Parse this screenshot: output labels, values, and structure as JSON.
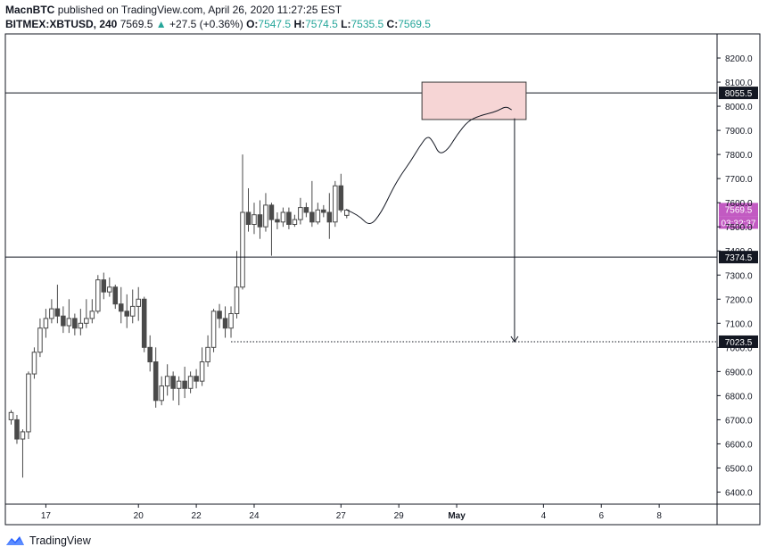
{
  "header": {
    "author": "MacnBTC",
    "published": "published on TradingView.com, April 26, 2020 11:27:25 EST",
    "symbol": "BITMEX:XBTUSD, 240",
    "last": "7569.5",
    "change": "+27.5 (+0.36%)",
    "o_label": "O:",
    "o_value": "7547.5",
    "h_label": "H:",
    "h_value": "7574.5",
    "l_label": "L:",
    "l_value": "7535.5",
    "c_label": "C:",
    "c_value": "7569.5"
  },
  "brand": {
    "name": "TradingView",
    "icon": "tradingview-logo-icon"
  },
  "colors": {
    "up": "#ffffff",
    "down": "#4a4a4a",
    "wick": "#4a4a4a",
    "zone_fill": "#f6d5d5",
    "zone_stroke": "#3a3a3a",
    "level_line": "#131722",
    "price_badge": "#c25ac2",
    "label_bg": "#131722"
  },
  "chart_data": {
    "type": "candlestick",
    "title": "",
    "xlabel": "",
    "ylabel": "",
    "ylim": [
      6350,
      8300
    ],
    "grid": false,
    "y_ticks": [
      "6400.0",
      "6500.0",
      "6600.0",
      "6700.0",
      "6800.0",
      "6900.0",
      "7000.0",
      "7100.0",
      "7200.0",
      "7300.0",
      "7400.0",
      "7500.0",
      "7600.0",
      "7700.0",
      "7800.0",
      "7900.0",
      "8000.0",
      "8100.0",
      "8200.0"
    ],
    "x_ticks": [
      {
        "label": "17",
        "bar": 6
      },
      {
        "label": "20",
        "bar": 22
      },
      {
        "label": "22",
        "bar": 32
      },
      {
        "label": "24",
        "bar": 42
      },
      {
        "label": "27",
        "bar": 57
      },
      {
        "label": "29",
        "bar": 67
      },
      {
        "label": "May",
        "bar": 77
      },
      {
        "label": "4",
        "bar": 92
      },
      {
        "label": "6",
        "bar": 102
      },
      {
        "label": "8",
        "bar": 112
      }
    ],
    "x_range": [
      -1,
      122
    ],
    "candles": [
      [
        6700,
        6730,
        6680,
        6740
      ],
      [
        6700,
        6620,
        6600,
        6720
      ],
      [
        6620,
        6650,
        6460,
        6660
      ],
      [
        6650,
        6890,
        6620,
        6900
      ],
      [
        6890,
        6980,
        6870,
        7000
      ],
      [
        6980,
        7080,
        6960,
        7120
      ],
      [
        7080,
        7120,
        7040,
        7160
      ],
      [
        7120,
        7160,
        7100,
        7200
      ],
      [
        7160,
        7130,
        7100,
        7260
      ],
      [
        7130,
        7090,
        7060,
        7170
      ],
      [
        7090,
        7120,
        7060,
        7200
      ],
      [
        7120,
        7080,
        7050,
        7140
      ],
      [
        7080,
        7100,
        7050,
        7160
      ],
      [
        7100,
        7120,
        7080,
        7200
      ],
      [
        7120,
        7150,
        7100,
        7200
      ],
      [
        7150,
        7280,
        7140,
        7300
      ],
      [
        7280,
        7230,
        7200,
        7310
      ],
      [
        7230,
        7250,
        7210,
        7290
      ],
      [
        7250,
        7180,
        7160,
        7260
      ],
      [
        7180,
        7150,
        7100,
        7250
      ],
      [
        7150,
        7130,
        7080,
        7220
      ],
      [
        7130,
        7170,
        7100,
        7240
      ],
      [
        7170,
        7200,
        7110,
        7250
      ],
      [
        7200,
        7000,
        6980,
        7210
      ],
      [
        7000,
        6940,
        6900,
        7050
      ],
      [
        6940,
        6780,
        6750,
        7000
      ],
      [
        6780,
        6840,
        6760,
        6880
      ],
      [
        6840,
        6880,
        6800,
        6930
      ],
      [
        6880,
        6830,
        6780,
        6900
      ],
      [
        6830,
        6860,
        6760,
        6880
      ],
      [
        6860,
        6830,
        6790,
        6920
      ],
      [
        6830,
        6880,
        6810,
        6900
      ],
      [
        6880,
        6860,
        6830,
        6910
      ],
      [
        6860,
        6940,
        6840,
        7000
      ],
      [
        6940,
        7000,
        6920,
        7050
      ],
      [
        7000,
        7150,
        6980,
        7160
      ],
      [
        7150,
        7120,
        7080,
        7180
      ],
      [
        7120,
        7080,
        7040,
        7170
      ],
      [
        7080,
        7140,
        7040,
        7170
      ],
      [
        7140,
        7250,
        7120,
        7400
      ],
      [
        7250,
        7560,
        7240,
        7800
      ],
      [
        7560,
        7510,
        7480,
        7660
      ],
      [
        7510,
        7550,
        7470,
        7600
      ],
      [
        7550,
        7500,
        7450,
        7610
      ],
      [
        7500,
        7590,
        7480,
        7640
      ],
      [
        7590,
        7530,
        7380,
        7600
      ],
      [
        7530,
        7520,
        7490,
        7560
      ],
      [
        7520,
        7560,
        7500,
        7580
      ],
      [
        7560,
        7510,
        7490,
        7580
      ],
      [
        7510,
        7530,
        7500,
        7550
      ],
      [
        7530,
        7580,
        7510,
        7620
      ],
      [
        7580,
        7560,
        7540,
        7600
      ],
      [
        7560,
        7520,
        7500,
        7690
      ],
      [
        7520,
        7570,
        7510,
        7600
      ],
      [
        7570,
        7560,
        7540,
        7590
      ],
      [
        7560,
        7520,
        7450,
        7640
      ],
      [
        7520,
        7670,
        7500,
        7690
      ],
      [
        7670,
        7570,
        7560,
        7720
      ],
      [
        7547.5,
        7569.5,
        7535.5,
        7574.5
      ]
    ],
    "projection_path": [
      [
        58,
        7570
      ],
      [
        60,
        7550
      ],
      [
        62,
        7500
      ],
      [
        64,
        7560
      ],
      [
        66,
        7660
      ],
      [
        67.5,
        7720
      ],
      [
        69,
        7770
      ],
      [
        70.5,
        7830
      ],
      [
        72,
        7880
      ],
      [
        73,
        7850
      ],
      [
        74,
        7800
      ],
      [
        75.5,
        7820
      ],
      [
        77,
        7880
      ],
      [
        79,
        7940
      ],
      [
        81,
        7960
      ],
      [
        82.5,
        7970
      ],
      [
        84,
        7980
      ],
      [
        85.5,
        8000
      ],
      [
        86.5,
        7985
      ]
    ],
    "target_zone": {
      "bar_from": 71,
      "bar_to": 89,
      "price_from": 7945,
      "price_to": 8100
    },
    "arrow": {
      "bar": 87,
      "price_from": 7950,
      "price_to": 7023.5
    },
    "horizontal_levels": [
      {
        "price": 8055.5,
        "label": "8055.5",
        "style": "solid"
      },
      {
        "price": 7374.5,
        "label": "7374.5",
        "style": "solid"
      },
      {
        "price": 7023.5,
        "label": "7023.5",
        "style": "dotted",
        "bar_from": 38
      }
    ],
    "last_price": {
      "price": 7569.5,
      "label": "7569.5",
      "countdown": "03:32:37"
    }
  }
}
